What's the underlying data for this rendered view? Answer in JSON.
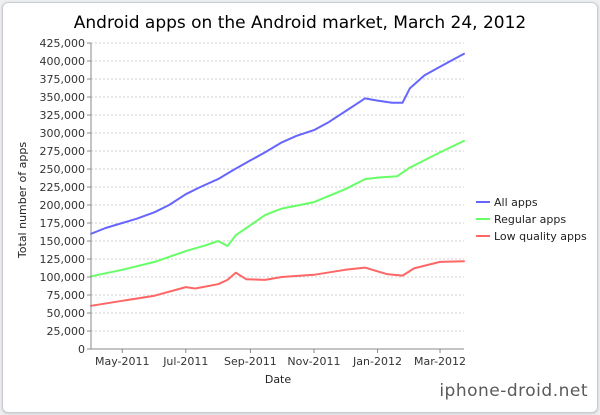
{
  "chart_data": {
    "type": "line",
    "title": "Android apps on the Android market, March 24, 2012",
    "xlabel": "Date",
    "ylabel": "Total number of apps",
    "x_axis": {
      "start": "2011-04-01",
      "end": "2012-03-24",
      "ticks": [
        {
          "date": "2011-05-01",
          "label": "May-2011"
        },
        {
          "date": "2011-07-01",
          "label": "Jul-2011"
        },
        {
          "date": "2011-09-01",
          "label": "Sep-2011"
        },
        {
          "date": "2011-11-01",
          "label": "Nov-2011"
        },
        {
          "date": "2012-01-01",
          "label": "Jan-2012"
        },
        {
          "date": "2012-03-01",
          "label": "Mar-2012"
        }
      ]
    },
    "ylim": [
      0,
      425000
    ],
    "yticks": [
      {
        "v": 0,
        "label": "0"
      },
      {
        "v": 25000,
        "label": "25,000"
      },
      {
        "v": 50000,
        "label": "50,000"
      },
      {
        "v": 75000,
        "label": "75,000"
      },
      {
        "v": 100000,
        "label": "100,000"
      },
      {
        "v": 125000,
        "label": "125,000"
      },
      {
        "v": 150000,
        "label": "150,000"
      },
      {
        "v": 175000,
        "label": "175,000"
      },
      {
        "v": 200000,
        "label": "200,000"
      },
      {
        "v": 225000,
        "label": "225,000"
      },
      {
        "v": 250000,
        "label": "250,000"
      },
      {
        "v": 275000,
        "label": "275,000"
      },
      {
        "v": 300000,
        "label": "300,000"
      },
      {
        "v": 325000,
        "label": "325,000"
      },
      {
        "v": 350000,
        "label": "350,000"
      },
      {
        "v": 375000,
        "label": "375,000"
      },
      {
        "v": 400000,
        "label": "400,000"
      },
      {
        "v": 425000,
        "label": "425,000"
      }
    ],
    "grid": true,
    "legend_position": "right",
    "series": [
      {
        "name": "All apps",
        "color": "#6666ff",
        "points": [
          [
            "2011-04-01",
            160000
          ],
          [
            "2011-04-15",
            168000
          ],
          [
            "2011-05-01",
            175000
          ],
          [
            "2011-05-15",
            181000
          ],
          [
            "2011-06-01",
            190000
          ],
          [
            "2011-06-15",
            200000
          ],
          [
            "2011-07-01",
            215000
          ],
          [
            "2011-07-15",
            225000
          ],
          [
            "2011-08-01",
            236000
          ],
          [
            "2011-08-15",
            248000
          ],
          [
            "2011-09-01",
            262000
          ],
          [
            "2011-09-15",
            273000
          ],
          [
            "2011-10-01",
            287000
          ],
          [
            "2011-10-15",
            296000
          ],
          [
            "2011-11-01",
            304000
          ],
          [
            "2011-11-15",
            315000
          ],
          [
            "2011-12-01",
            330000
          ],
          [
            "2011-12-20",
            348000
          ],
          [
            "2012-01-01",
            345000
          ],
          [
            "2012-01-15",
            342000
          ],
          [
            "2012-01-25",
            342000
          ],
          [
            "2012-02-01",
            362000
          ],
          [
            "2012-02-15",
            380000
          ],
          [
            "2012-03-01",
            392000
          ],
          [
            "2012-03-24",
            410000
          ]
        ]
      },
      {
        "name": "Regular apps",
        "color": "#66ff66",
        "points": [
          [
            "2011-04-01",
            101000
          ],
          [
            "2011-05-01",
            110000
          ],
          [
            "2011-06-01",
            121000
          ],
          [
            "2011-07-01",
            136000
          ],
          [
            "2011-07-20",
            144000
          ],
          [
            "2011-08-01",
            150000
          ],
          [
            "2011-08-10",
            143000
          ],
          [
            "2011-08-18",
            158000
          ],
          [
            "2011-09-01",
            172000
          ],
          [
            "2011-09-15",
            186000
          ],
          [
            "2011-10-01",
            195000
          ],
          [
            "2011-11-01",
            204000
          ],
          [
            "2011-12-01",
            222000
          ],
          [
            "2011-12-20",
            236000
          ],
          [
            "2012-01-01",
            238000
          ],
          [
            "2012-01-20",
            240000
          ],
          [
            "2012-02-01",
            252000
          ],
          [
            "2012-03-01",
            273000
          ],
          [
            "2012-03-24",
            289000
          ]
        ]
      },
      {
        "name": "Low quality apps",
        "color": "#ff6666",
        "points": [
          [
            "2011-04-01",
            60000
          ],
          [
            "2011-05-01",
            67000
          ],
          [
            "2011-06-01",
            74000
          ],
          [
            "2011-07-01",
            86000
          ],
          [
            "2011-07-10",
            84000
          ],
          [
            "2011-08-01",
            90000
          ],
          [
            "2011-08-10",
            96000
          ],
          [
            "2011-08-18",
            106000
          ],
          [
            "2011-08-28",
            97000
          ],
          [
            "2011-09-15",
            96000
          ],
          [
            "2011-10-01",
            100000
          ],
          [
            "2011-11-01",
            103000
          ],
          [
            "2011-12-01",
            110000
          ],
          [
            "2011-12-20",
            113000
          ],
          [
            "2012-01-10",
            104000
          ],
          [
            "2012-01-25",
            102000
          ],
          [
            "2012-02-05",
            112000
          ],
          [
            "2012-03-01",
            121000
          ],
          [
            "2012-03-24",
            122000
          ]
        ]
      }
    ]
  },
  "watermark": "iphone-droid.net"
}
